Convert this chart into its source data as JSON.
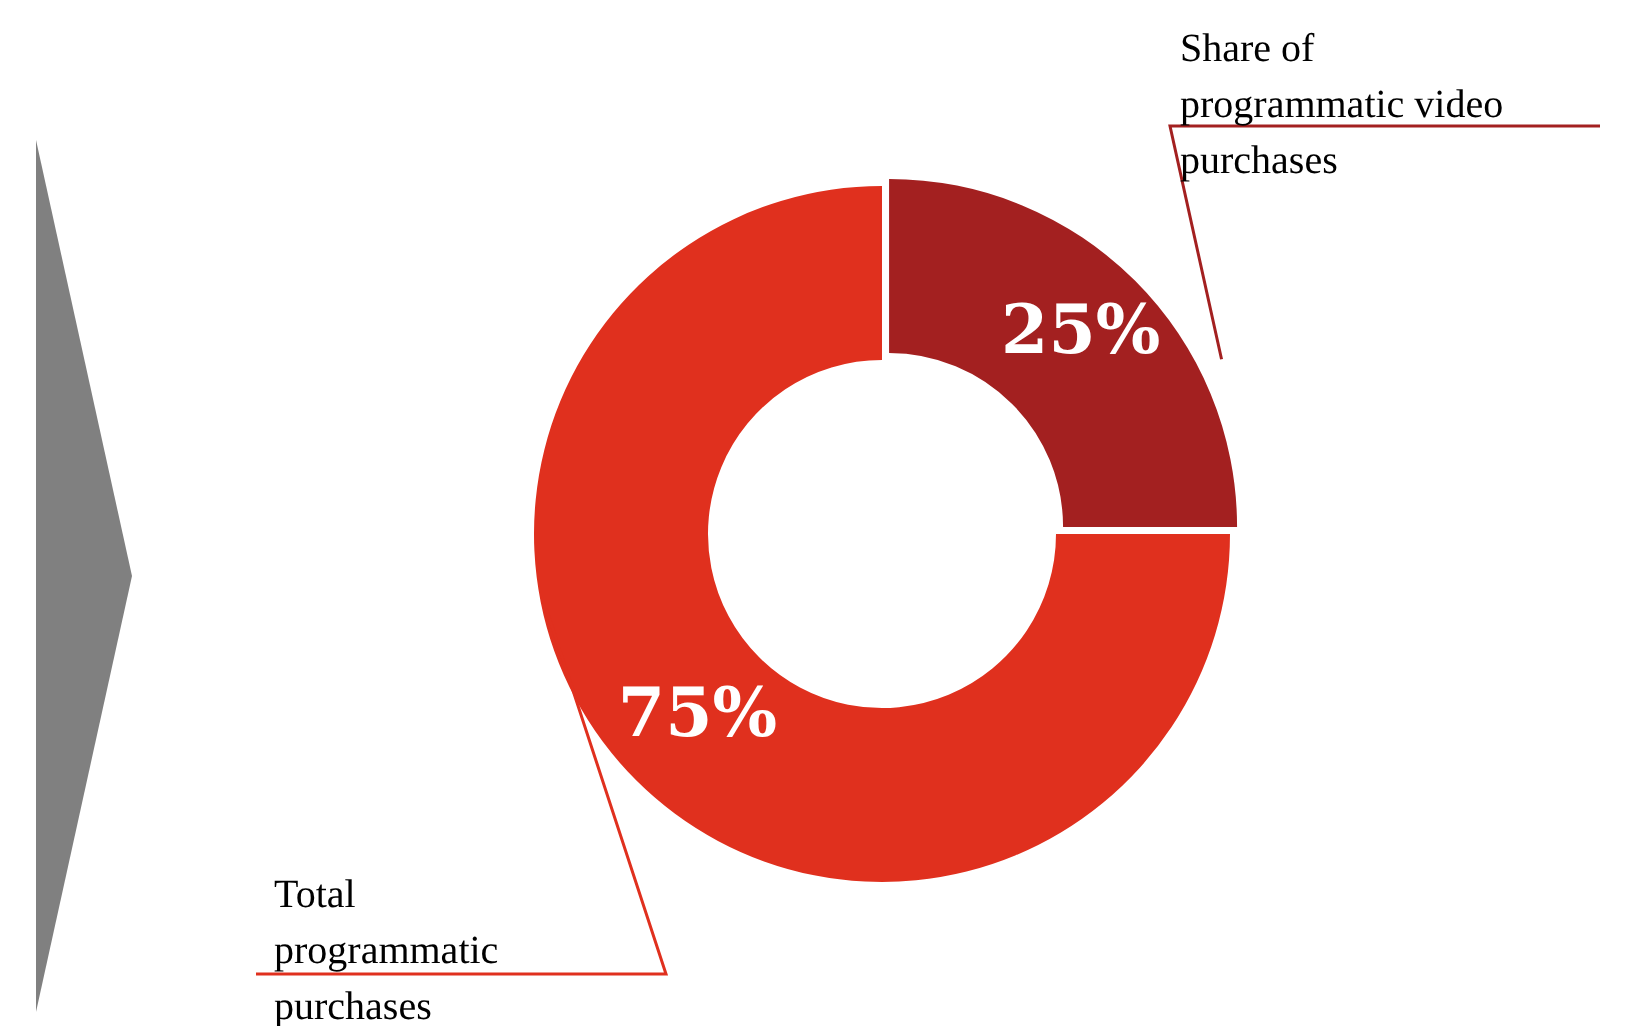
{
  "chart_data": {
    "type": "donut",
    "categories": [
      "Share of programmatic video purchases",
      "Total programmatic purchases"
    ],
    "values": [
      25,
      75
    ],
    "colors": [
      "#a32020",
      "#e0301e"
    ],
    "value_labels": [
      "25%",
      "75%"
    ],
    "legend": false
  }
}
